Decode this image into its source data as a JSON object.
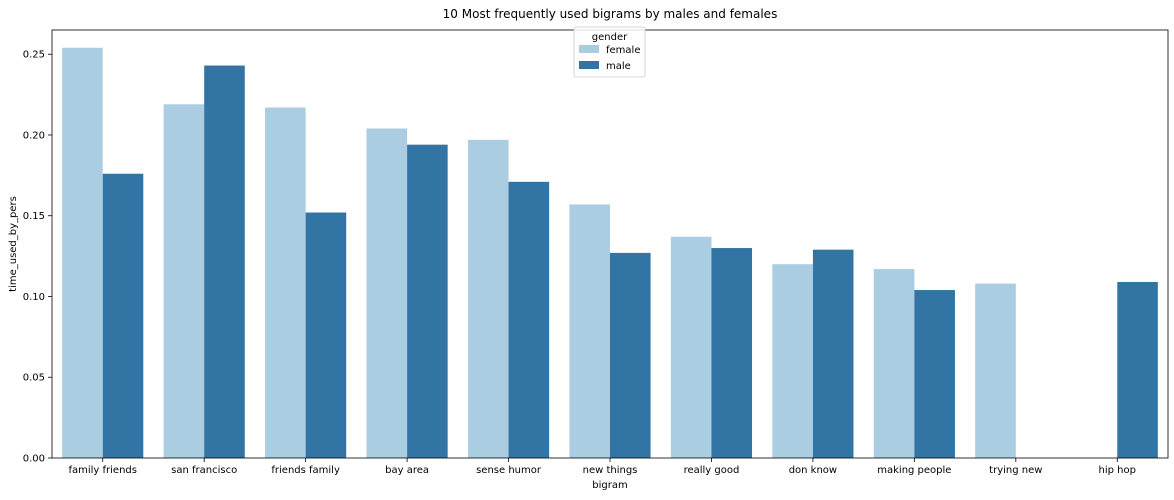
{
  "chart_data": {
    "type": "bar",
    "title": "10 Most frequently used bigrams by males and females",
    "xlabel": "bigram",
    "ylabel": "time_used_by_pers",
    "categories": [
      "family friends",
      "san francisco",
      "friends family",
      "bay area",
      "sense humor",
      "new things",
      "really good",
      "don know",
      "making people",
      "trying new",
      "hip hop"
    ],
    "series": [
      {
        "name": "female",
        "color": "#abcde2",
        "values": [
          0.254,
          0.219,
          0.217,
          0.204,
          0.197,
          0.157,
          0.137,
          0.12,
          0.117,
          0.108,
          null
        ]
      },
      {
        "name": "male",
        "color": "#3274a4",
        "values": [
          0.176,
          0.243,
          0.152,
          0.194,
          0.171,
          0.127,
          0.13,
          0.129,
          0.104,
          null,
          0.109
        ]
      }
    ],
    "ylim": [
      0,
      0.265
    ],
    "yticks": [
      0.0,
      0.05,
      0.1,
      0.15,
      0.2,
      0.25
    ],
    "ytick_labels": [
      "0.00",
      "0.05",
      "0.10",
      "0.15",
      "0.20",
      "0.25"
    ],
    "grid": false,
    "legend": {
      "title": "gender",
      "placement": "top-center"
    }
  }
}
